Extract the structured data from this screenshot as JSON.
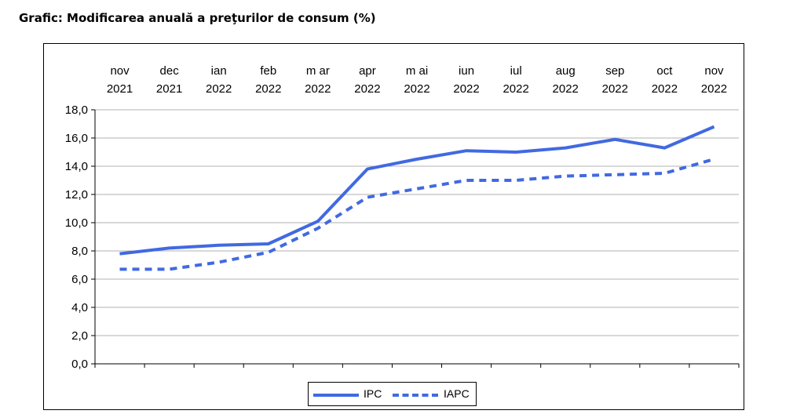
{
  "chart_data": {
    "type": "line",
    "title": "Grafic: Modificarea anuală a preţurilor de consum (%)",
    "xlabel": "",
    "ylabel": "",
    "categories": [
      [
        "nov",
        "2021"
      ],
      [
        "dec",
        "2021"
      ],
      [
        "ian",
        "2022"
      ],
      [
        "feb",
        "2022"
      ],
      [
        "m ar",
        "2022"
      ],
      [
        "apr",
        "2022"
      ],
      [
        "m ai",
        "2022"
      ],
      [
        "iun",
        "2022"
      ],
      [
        "iul",
        "2022"
      ],
      [
        "aug",
        "2022"
      ],
      [
        "sep",
        "2022"
      ],
      [
        "oct",
        "2022"
      ],
      [
        "nov",
        "2022"
      ]
    ],
    "ylim": [
      0,
      18
    ],
    "ytick_step": 2,
    "ytick_labels": [
      "0,0",
      "2,0",
      "4,0",
      "6,0",
      "8,0",
      "10,0",
      "12,0",
      "14,0",
      "16,0",
      "18,0"
    ],
    "grid": true,
    "legend_placement": "bottom-center",
    "series": [
      {
        "name": "IPC",
        "style": "solid",
        "color": "#4169E1",
        "values": [
          7.8,
          8.2,
          8.4,
          8.5,
          10.1,
          13.8,
          14.5,
          15.1,
          15.0,
          15.3,
          15.9,
          15.3,
          16.8
        ]
      },
      {
        "name": "IAPC",
        "style": "dashed",
        "color": "#4169E1",
        "values": [
          6.7,
          6.7,
          7.2,
          7.9,
          9.6,
          11.8,
          12.4,
          13.0,
          13.0,
          13.3,
          13.4,
          13.5,
          14.5
        ]
      }
    ]
  }
}
